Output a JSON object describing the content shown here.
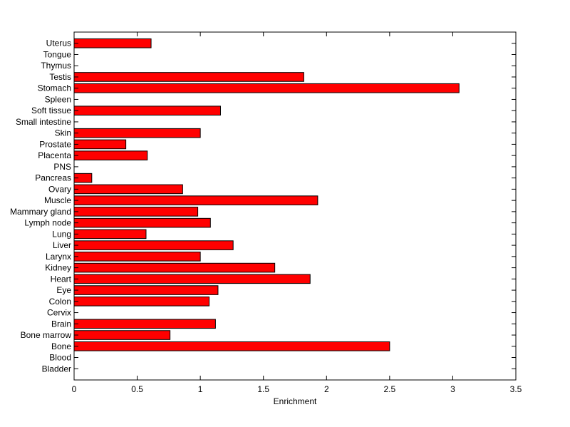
{
  "chart_data": {
    "type": "bar",
    "orientation": "horizontal",
    "xlabel": "Enrichment",
    "ylabel": "",
    "title": "",
    "xlim": [
      0,
      3.5
    ],
    "xticks": [
      "0",
      "0.5",
      "1",
      "1.5",
      "2",
      "2.5",
      "3",
      "3.5"
    ],
    "grid": false,
    "bar_color": "#ff0000",
    "bar_edge_color": "#000000",
    "categories": [
      "Uterus",
      "Tongue",
      "Thymus",
      "Testis",
      "Stomach",
      "Spleen",
      "Soft tissue",
      "Small intestine",
      "Skin",
      "Prostate",
      "Placenta",
      "PNS",
      "Pancreas",
      "Ovary",
      "Muscle",
      "Mammary gland",
      "Lymph node",
      "Lung",
      "Liver",
      "Larynx",
      "Kidney",
      "Heart",
      "Eye",
      "Colon",
      "Cervix",
      "Brain",
      "Bone marrow",
      "Bone",
      "Blood",
      "Bladder"
    ],
    "values": [
      0.61,
      0,
      0,
      1.82,
      3.05,
      0,
      1.16,
      0,
      1.0,
      0.41,
      0.58,
      0,
      0.14,
      0.86,
      1.93,
      0.98,
      1.08,
      0.57,
      1.26,
      1.0,
      1.59,
      1.87,
      1.14,
      1.07,
      0,
      1.12,
      0.76,
      2.5,
      0,
      0
    ]
  }
}
